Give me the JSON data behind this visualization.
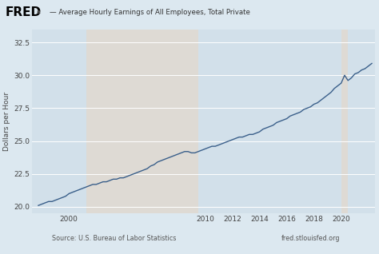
{
  "title_fred": "FRED",
  "subtitle": "— Average Hourly Earnings of All Employees, Total Private",
  "ylabel": "Dollars per Hour",
  "source_left": "Source: U.S. Bureau of Labor Statistics",
  "source_right": "fred.stlouisfed.org",
  "line_color": "#3a5f8a",
  "bg_color": "#dce8f0",
  "plot_bg_color": "#d2e0ea",
  "recession1_color": "#dedad4",
  "recession2_color": "#dedad4",
  "ylim": [
    19.5,
    33.5
  ],
  "yticks": [
    20.0,
    22.5,
    25.0,
    27.5,
    30.0,
    32.5
  ],
  "xlim_start": 1997.3,
  "xlim_end": 2022.5,
  "xticks": [
    2000,
    2010,
    2012,
    2014,
    2016,
    2018,
    2020
  ],
  "recession1_start": 2001.25,
  "recession1_end": 2009.5,
  "recession2_start": 2020.0,
  "recession2_end": 2020.5,
  "data_years": [
    1997.75,
    1998.0,
    1998.25,
    1998.5,
    1998.75,
    1999.0,
    1999.25,
    1999.5,
    1999.75,
    2000.0,
    2000.25,
    2000.5,
    2000.75,
    2001.0,
    2001.25,
    2001.5,
    2001.75,
    2002.0,
    2002.25,
    2002.5,
    2002.75,
    2003.0,
    2003.25,
    2003.5,
    2003.75,
    2004.0,
    2004.25,
    2004.5,
    2004.75,
    2005.0,
    2005.25,
    2005.5,
    2005.75,
    2006.0,
    2006.25,
    2006.5,
    2006.75,
    2007.0,
    2007.25,
    2007.5,
    2007.75,
    2008.0,
    2008.25,
    2008.5,
    2008.75,
    2009.0,
    2009.25,
    2009.5,
    2009.75,
    2010.0,
    2010.25,
    2010.5,
    2010.75,
    2011.0,
    2011.25,
    2011.5,
    2011.75,
    2012.0,
    2012.25,
    2012.5,
    2012.75,
    2013.0,
    2013.25,
    2013.5,
    2013.75,
    2014.0,
    2014.25,
    2014.5,
    2014.75,
    2015.0,
    2015.25,
    2015.5,
    2015.75,
    2016.0,
    2016.25,
    2016.5,
    2016.75,
    2017.0,
    2017.25,
    2017.5,
    2017.75,
    2018.0,
    2018.25,
    2018.5,
    2018.75,
    2019.0,
    2019.25,
    2019.5,
    2019.75,
    2020.0,
    2020.25,
    2020.5,
    2020.75,
    2021.0,
    2021.25,
    2021.5,
    2021.75,
    2022.0,
    2022.25
  ],
  "data_values": [
    20.1,
    20.2,
    20.3,
    20.4,
    20.4,
    20.5,
    20.6,
    20.7,
    20.8,
    21.0,
    21.1,
    21.2,
    21.3,
    21.4,
    21.5,
    21.6,
    21.7,
    21.7,
    21.8,
    21.9,
    21.9,
    22.0,
    22.1,
    22.1,
    22.2,
    22.2,
    22.3,
    22.4,
    22.5,
    22.6,
    22.7,
    22.8,
    22.9,
    23.1,
    23.2,
    23.4,
    23.5,
    23.6,
    23.7,
    23.8,
    23.9,
    24.0,
    24.1,
    24.2,
    24.2,
    24.1,
    24.1,
    24.2,
    24.3,
    24.4,
    24.5,
    24.6,
    24.6,
    24.7,
    24.8,
    24.9,
    25.0,
    25.1,
    25.2,
    25.3,
    25.3,
    25.4,
    25.5,
    25.5,
    25.6,
    25.7,
    25.9,
    26.0,
    26.1,
    26.2,
    26.4,
    26.5,
    26.6,
    26.7,
    26.9,
    27.0,
    27.1,
    27.2,
    27.4,
    27.5,
    27.6,
    27.8,
    27.9,
    28.1,
    28.3,
    28.5,
    28.7,
    29.0,
    29.2,
    29.4,
    30.0,
    29.6,
    29.8,
    30.1,
    30.2,
    30.4,
    30.5,
    30.7,
    30.9
  ]
}
